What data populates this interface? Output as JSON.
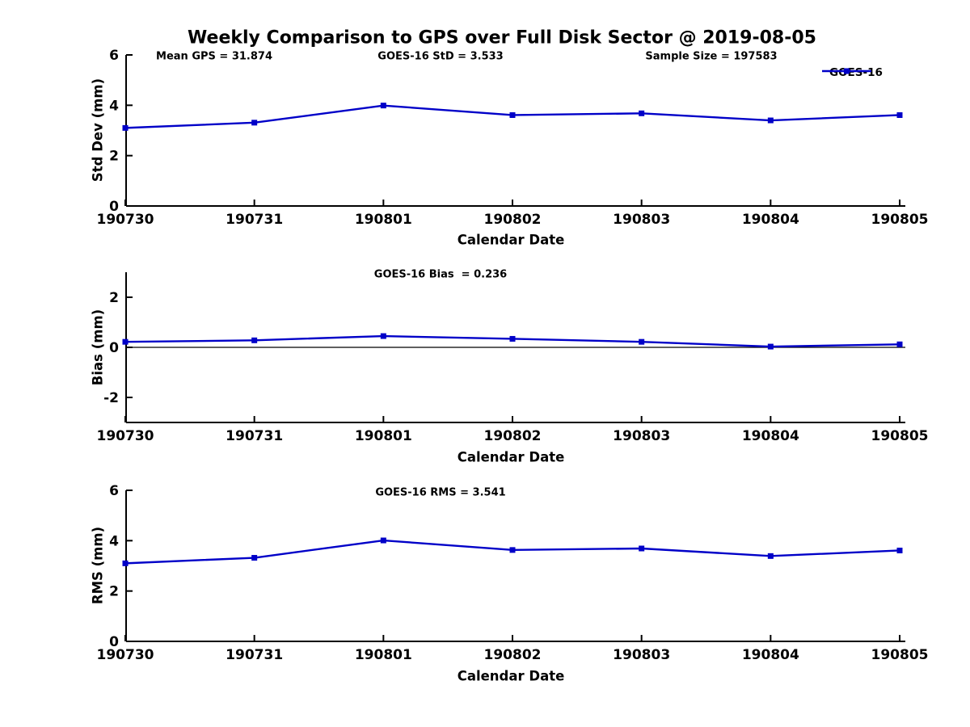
{
  "title": "Weekly Comparison to GPS over Full Disk Sector @ 2019-08-05",
  "colors": {
    "series": "#0000c8",
    "axis": "#000000",
    "zero_line": "#000000",
    "background": "#ffffff",
    "text": "#000000"
  },
  "chart_data": [
    {
      "type": "line",
      "x": [
        "190730",
        "190731",
        "190801",
        "190802",
        "190803",
        "190804",
        "190805"
      ],
      "series": [
        {
          "name": "GOES-16",
          "values": [
            3.1,
            3.31,
            3.99,
            3.61,
            3.68,
            3.4,
            3.61
          ]
        }
      ],
      "xlabel": "Calendar Date",
      "ylabel": "Std Dev (mm)",
      "ylim": [
        0,
        6
      ],
      "yticks": [
        0,
        2,
        4,
        6
      ],
      "zero_line": false,
      "grid": false,
      "annotations": [
        "Mean GPS = 31.874",
        "GOES-16 StD = 3.533",
        "Sample Size = 197583"
      ],
      "legend": {
        "label": "GOES-16",
        "position": "top-right",
        "marker": "filled-square"
      }
    },
    {
      "type": "line",
      "x": [
        "190730",
        "190731",
        "190801",
        "190802",
        "190803",
        "190804",
        "190805"
      ],
      "series": [
        {
          "name": "GOES-16",
          "values": [
            0.22,
            0.28,
            0.45,
            0.34,
            0.22,
            0.03,
            0.12
          ]
        }
      ],
      "xlabel": "Calendar Date",
      "ylabel": "Bias (mm)",
      "ylim": [
        -3,
        3
      ],
      "yticks": [
        -2,
        0,
        2
      ],
      "zero_line": true,
      "grid": false,
      "annotations": [
        "GOES-16 Bias  = 0.236"
      ]
    },
    {
      "type": "line",
      "x": [
        "190730",
        "190731",
        "190801",
        "190802",
        "190803",
        "190804",
        "190805"
      ],
      "series": [
        {
          "name": "GOES-16",
          "values": [
            3.1,
            3.32,
            4.01,
            3.63,
            3.69,
            3.39,
            3.61
          ]
        }
      ],
      "xlabel": "Calendar Date",
      "ylabel": "RMS (mm)",
      "ylim": [
        0,
        6
      ],
      "yticks": [
        0,
        2,
        4,
        6
      ],
      "zero_line": false,
      "grid": false,
      "annotations": [
        "GOES-16 RMS = 3.541"
      ]
    }
  ]
}
